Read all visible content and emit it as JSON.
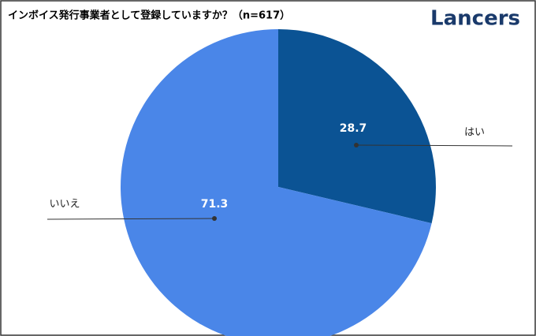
{
  "chart_data": {
    "type": "pie",
    "title": "インボイス発行事業者として登録していますか？（n=617）",
    "brand": "Lancers",
    "categories": [
      "はい",
      "いいえ"
    ],
    "values": [
      28.7,
      71.3
    ],
    "colors": [
      "#0b5394",
      "#4a86e8"
    ]
  }
}
